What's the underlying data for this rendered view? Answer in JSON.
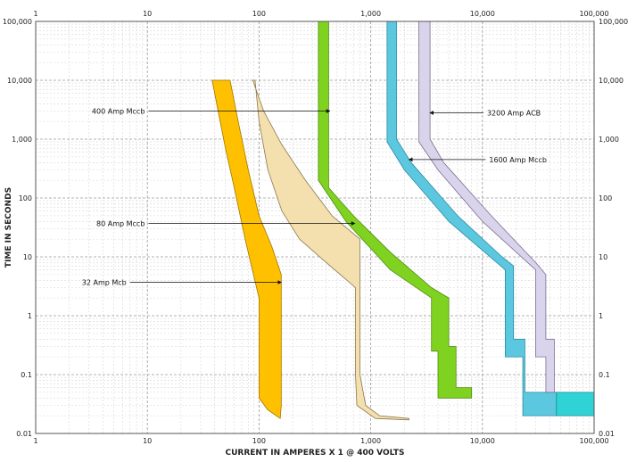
{
  "chart_data": {
    "type": "area",
    "xlabel": "CURRENT IN AMPERES X 1 @ 400 VOLTS",
    "ylabel": "TIME IN SECONDS",
    "xscale": "log",
    "yscale": "log",
    "xlim": [
      1,
      100000
    ],
    "ylim": [
      0.01,
      100000
    ],
    "grid": true,
    "x_ticks": [
      {
        "value": 1,
        "label": "1"
      },
      {
        "value": 10,
        "label": "10"
      },
      {
        "value": 100,
        "label": "100"
      },
      {
        "value": 1000,
        "label": "1,000"
      },
      {
        "value": 10000,
        "label": "10,000"
      },
      {
        "value": 100000,
        "label": "100,000"
      }
    ],
    "y_ticks": [
      {
        "value": 0.01,
        "label": "0.01"
      },
      {
        "value": 0.1,
        "label": "0.1"
      },
      {
        "value": 1,
        "label": "1"
      },
      {
        "value": 10,
        "label": "10"
      },
      {
        "value": 100,
        "label": "100"
      },
      {
        "value": 1000,
        "label": "1,000"
      },
      {
        "value": 10000,
        "label": "10,000"
      },
      {
        "value": 100000,
        "label": "100,000"
      }
    ],
    "series": [
      {
        "name": "32 Amp Mcb",
        "color": "#FFC000",
        "stroke": "#a07800",
        "points": [
          [
            38,
            10000
          ],
          [
            43,
            3000
          ],
          [
            50,
            700
          ],
          [
            60,
            150
          ],
          [
            75,
            20
          ],
          [
            95,
            3
          ],
          [
            100,
            2
          ],
          [
            100,
            0.04
          ],
          [
            120,
            0.025
          ],
          [
            155,
            0.018
          ],
          [
            158,
            0.03
          ],
          [
            158,
            5
          ],
          [
            130,
            15
          ],
          [
            100,
            50
          ],
          [
            80,
            300
          ],
          [
            65,
            2000
          ],
          [
            55,
            10000
          ]
        ]
      },
      {
        "name": "80 Amp Mccb",
        "color": "#F4DFAE",
        "stroke": "#8a7a50",
        "points": [
          [
            88,
            10000
          ],
          [
            110,
            3000
          ],
          [
            160,
            800
          ],
          [
            260,
            200
          ],
          [
            450,
            50
          ],
          [
            800,
            20
          ],
          [
            800,
            0.1
          ],
          [
            900,
            0.03
          ],
          [
            1200,
            0.02
          ],
          [
            2200,
            0.018
          ],
          [
            2200,
            0.017
          ],
          [
            1100,
            0.018
          ],
          [
            750,
            0.03
          ],
          [
            730,
            0.1
          ],
          [
            730,
            3
          ],
          [
            400,
            8
          ],
          [
            230,
            20
          ],
          [
            160,
            60
          ],
          [
            120,
            300
          ],
          [
            100,
            2000
          ],
          [
            92,
            10000
          ]
        ]
      },
      {
        "name": "400 Amp Mccb",
        "color": "#7FD320",
        "stroke": "#4f8a10",
        "points": [
          [
            340,
            100000
          ],
          [
            420,
            100000
          ],
          [
            420,
            150
          ],
          [
            700,
            50
          ],
          [
            1500,
            12
          ],
          [
            3500,
            3
          ],
          [
            5000,
            2
          ],
          [
            5000,
            0.3
          ],
          [
            5800,
            0.3
          ],
          [
            5800,
            0.06
          ],
          [
            8000,
            0.06
          ],
          [
            8000,
            0.04
          ],
          [
            4000,
            0.04
          ],
          [
            4000,
            0.25
          ],
          [
            3500,
            0.25
          ],
          [
            3500,
            2
          ],
          [
            1500,
            6
          ],
          [
            600,
            40
          ],
          [
            340,
            200
          ]
        ]
      },
      {
        "name": "1600 Amp Mccb",
        "color": "#5CC8E0",
        "stroke": "#2b8aa0",
        "points": [
          [
            1400,
            100000
          ],
          [
            1700,
            100000
          ],
          [
            1700,
            1000
          ],
          [
            2300,
            400
          ],
          [
            6000,
            50
          ],
          [
            15000,
            10
          ],
          [
            19000,
            7
          ],
          [
            19000,
            0.4
          ],
          [
            24000,
            0.4
          ],
          [
            24000,
            0.05
          ],
          [
            46000,
            0.05
          ],
          [
            46000,
            0.02
          ],
          [
            23000,
            0.02
          ],
          [
            23000,
            0.2
          ],
          [
            16000,
            0.2
          ],
          [
            16000,
            6
          ],
          [
            5000,
            40
          ],
          [
            2000,
            300
          ],
          [
            1400,
            900
          ]
        ]
      },
      {
        "name": "3200 Amp ACB",
        "color": "#D9D4EC",
        "stroke": "#7a7090",
        "points": [
          [
            2700,
            100000
          ],
          [
            3400,
            100000
          ],
          [
            3400,
            1000
          ],
          [
            4500,
            400
          ],
          [
            12000,
            50
          ],
          [
            30000,
            8
          ],
          [
            37000,
            5
          ],
          [
            37000,
            0.4
          ],
          [
            44000,
            0.4
          ],
          [
            44000,
            0.05
          ],
          [
            37000,
            0.05
          ],
          [
            37000,
            0.2
          ],
          [
            30000,
            0.2
          ],
          [
            30000,
            6
          ],
          [
            10000,
            40
          ],
          [
            4000,
            300
          ],
          [
            2700,
            900
          ]
        ]
      },
      {
        "name": "",
        "color": "#2FD3D6",
        "stroke": "#1b8a8c",
        "points": [
          [
            46000,
            0.05
          ],
          [
            100000,
            0.05
          ],
          [
            100000,
            0.02
          ],
          [
            46000,
            0.02
          ]
        ]
      }
    ],
    "annotations": [
      {
        "text": "400 Amp Mccb",
        "anchor": "end",
        "label_at": [
          9.5,
          3000
        ],
        "arrow_to": [
          430,
          3000
        ]
      },
      {
        "text": "3200 Amp ACB",
        "anchor": "start",
        "label_at": [
          11000,
          2800
        ],
        "arrow_to": [
          3400,
          2800
        ]
      },
      {
        "text": "1600 Amp Mccb",
        "anchor": "start",
        "label_at": [
          11500,
          450
        ],
        "arrow_to": [
          2200,
          450
        ]
      },
      {
        "text": "80 Amp Mccb",
        "anchor": "end",
        "label_at": [
          9.5,
          37
        ],
        "arrow_to": [
          720,
          37
        ]
      },
      {
        "text": "32 Amp Mcb",
        "anchor": "end",
        "label_at": [
          6.5,
          3.7
        ],
        "arrow_to": [
          158,
          3.7
        ]
      }
    ]
  }
}
